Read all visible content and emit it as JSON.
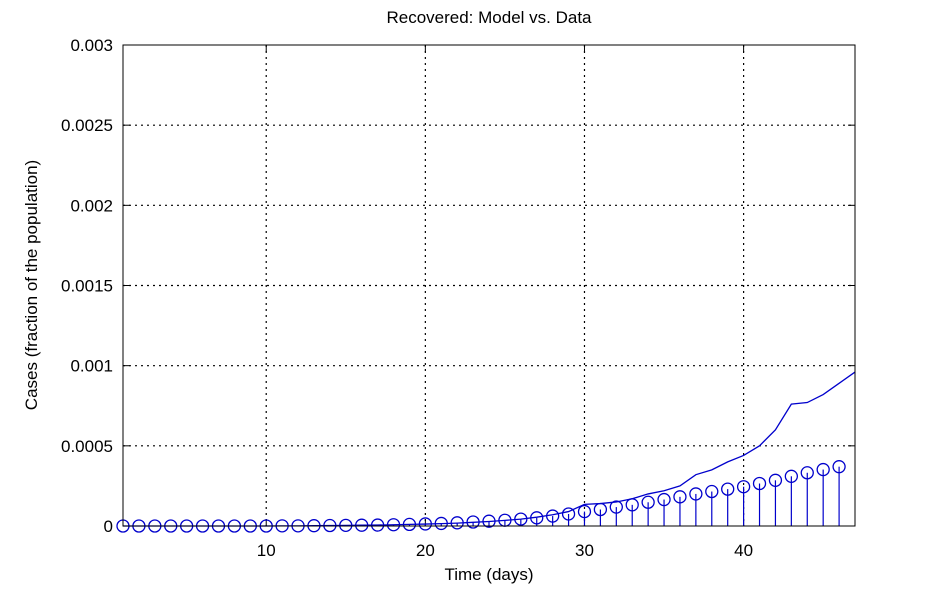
{
  "chart_data": {
    "type": "line",
    "title": "Recovered: Model vs. Data",
    "xlabel": "Time (days)",
    "ylabel": "Cases (fraction of the population)",
    "xlim": [
      1,
      47
    ],
    "ylim": [
      0,
      0.003
    ],
    "xticks": [
      10,
      20,
      30,
      40
    ],
    "yticks": [
      0,
      0.0005,
      0.001,
      0.0015,
      0.002,
      0.0025,
      0.003
    ],
    "ytick_labels": [
      "0",
      "0.0005",
      "0.001",
      "0.0015",
      "0.002",
      "0.0025",
      "0.003"
    ],
    "grid": true,
    "color": "#0000cc",
    "series": [
      {
        "type": "line",
        "x": [
          1,
          2,
          3,
          4,
          5,
          6,
          7,
          8,
          9,
          10,
          11,
          12,
          13,
          14,
          15,
          16,
          17,
          18,
          19,
          20,
          21,
          22,
          23,
          24,
          25,
          26,
          27,
          28,
          29,
          30,
          31,
          32,
          33,
          34,
          35,
          36,
          37,
          38,
          39,
          40,
          41,
          42,
          43,
          44,
          45,
          46,
          47
        ],
        "y": [
          0,
          0,
          0,
          0,
          0,
          0,
          0,
          0,
          0,
          0,
          1e-06,
          1e-06,
          2e-06,
          3e-06,
          4e-06,
          5e-06,
          6e-06,
          8e-06,
          1e-05,
          1.2e-05,
          1.5e-05,
          1.8e-05,
          2.3e-05,
          2.8e-05,
          3.5e-05,
          4.3e-05,
          5.5e-05,
          7e-05,
          9e-05,
          0.000135,
          0.00014,
          0.00015,
          0.00017,
          0.0002,
          0.00022,
          0.00025,
          0.00032,
          0.00035,
          0.0004,
          0.00044,
          0.0005,
          0.0006,
          0.00076,
          0.00077,
          0.00082,
          0.00089,
          0.00096
        ]
      },
      {
        "type": "stem",
        "x": [
          1,
          2,
          3,
          4,
          5,
          6,
          7,
          8,
          9,
          10,
          11,
          12,
          13,
          14,
          15,
          16,
          17,
          18,
          19,
          20,
          21,
          22,
          23,
          24,
          25,
          26,
          27,
          28,
          29,
          30,
          31,
          32,
          33,
          34,
          35,
          36,
          37,
          38,
          39,
          40,
          41,
          42,
          43,
          44,
          45,
          46
        ],
        "y": [
          0,
          0,
          0,
          0,
          0,
          0,
          0,
          0,
          0,
          0,
          1e-06,
          1e-06,
          2e-06,
          3e-06,
          4e-06,
          5e-06,
          6e-06,
          8e-06,
          1e-05,
          1.3e-05,
          1.6e-05,
          2e-05,
          2.5e-05,
          3e-05,
          3.6e-05,
          4.3e-05,
          5.1e-05,
          6.2e-05,
          7.5e-05,
          9e-05,
          0.000103,
          0.000118,
          0.000132,
          0.000148,
          0.000165,
          0.000182,
          0.0002,
          0.000215,
          0.00023,
          0.000245,
          0.000265,
          0.000285,
          0.00031,
          0.000332,
          0.000352,
          0.00037
        ]
      }
    ]
  }
}
